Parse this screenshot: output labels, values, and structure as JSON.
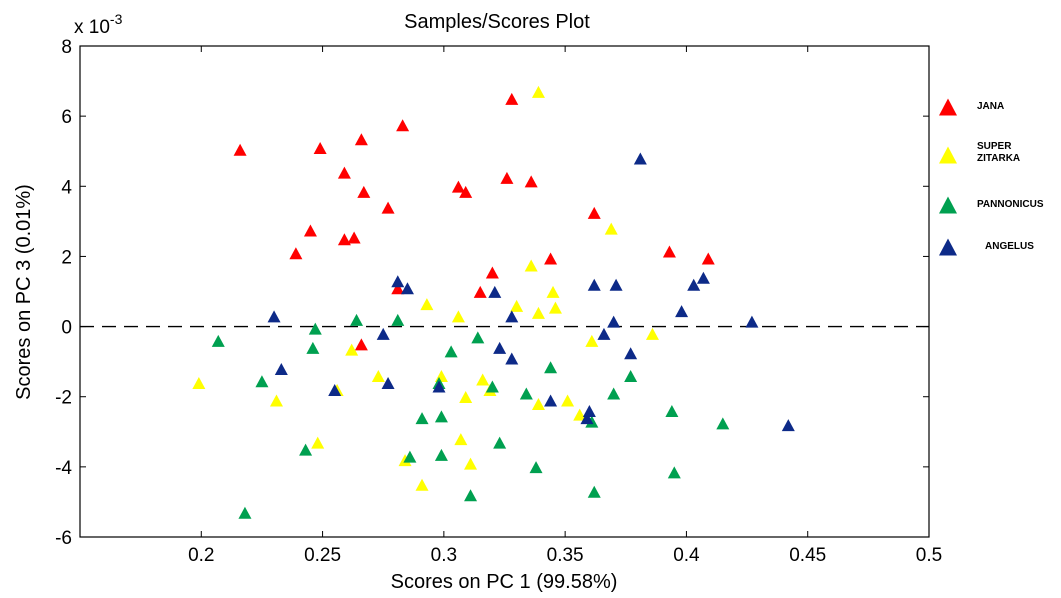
{
  "chart_data": {
    "type": "scatter",
    "title": "Samples/Scores Plot",
    "xlabel": "Scores on PC 1 (99.58%)",
    "ylabel": "Scores on PC 3 (0.01%)",
    "y_multiplier_label": "x 10",
    "y_multiplier_exponent": "-3",
    "xlim": [
      0.15,
      0.5
    ],
    "ylim": [
      -6,
      8
    ],
    "x_ticks": [
      0.2,
      0.25,
      0.3,
      0.35,
      0.4,
      0.45,
      0.5
    ],
    "x_tick_labels": [
      "0.2",
      "0.25",
      "0.3",
      "0.35",
      "0.4",
      "0.45",
      "0.5"
    ],
    "y_ticks": [
      -6,
      -4,
      -2,
      0,
      2,
      4,
      6,
      8
    ],
    "y_tick_labels": [
      "-6",
      "-4",
      "-2",
      "0",
      "2",
      "4",
      "6",
      "8"
    ],
    "zero_line": "dashed",
    "grid": false,
    "legend_position": "right",
    "marker": "triangle",
    "series": [
      {
        "name": "JANA",
        "color": "#ff0000",
        "points": [
          [
            0.216,
            5.0
          ],
          [
            0.249,
            5.05
          ],
          [
            0.259,
            4.35
          ],
          [
            0.266,
            5.3
          ],
          [
            0.267,
            3.8
          ],
          [
            0.277,
            3.35
          ],
          [
            0.283,
            5.7
          ],
          [
            0.245,
            2.7
          ],
          [
            0.259,
            2.45
          ],
          [
            0.263,
            2.5
          ],
          [
            0.239,
            2.05
          ],
          [
            0.266,
            -0.55
          ],
          [
            0.281,
            1.05
          ],
          [
            0.306,
            3.95
          ],
          [
            0.309,
            3.8
          ],
          [
            0.326,
            4.2
          ],
          [
            0.328,
            6.45
          ],
          [
            0.336,
            4.1
          ],
          [
            0.32,
            1.5
          ],
          [
            0.315,
            0.95
          ],
          [
            0.344,
            1.9
          ],
          [
            0.362,
            3.2
          ],
          [
            0.393,
            2.1
          ],
          [
            0.409,
            1.9
          ]
        ]
      },
      {
        "name": "SUPER ZITARKA",
        "color": "#ffff00",
        "points": [
          [
            0.339,
            6.65
          ],
          [
            0.369,
            2.75
          ],
          [
            0.336,
            1.7
          ],
          [
            0.33,
            0.55
          ],
          [
            0.339,
            0.35
          ],
          [
            0.345,
            0.95
          ],
          [
            0.346,
            0.5
          ],
          [
            0.293,
            0.6
          ],
          [
            0.306,
            0.25
          ],
          [
            0.386,
            -0.25
          ],
          [
            0.361,
            -0.45
          ],
          [
            0.262,
            -0.7
          ],
          [
            0.199,
            -1.65
          ],
          [
            0.231,
            -2.15
          ],
          [
            0.248,
            -3.35
          ],
          [
            0.256,
            -1.85
          ],
          [
            0.273,
            -1.45
          ],
          [
            0.299,
            -1.45
          ],
          [
            0.309,
            -2.05
          ],
          [
            0.316,
            -1.55
          ],
          [
            0.319,
            -1.85
          ],
          [
            0.339,
            -2.25
          ],
          [
            0.351,
            -2.15
          ],
          [
            0.356,
            -2.55
          ],
          [
            0.307,
            -3.25
          ],
          [
            0.311,
            -3.95
          ],
          [
            0.291,
            -4.55
          ],
          [
            0.284,
            -3.85
          ]
        ]
      },
      {
        "name": "PANNONICUS",
        "color": "#00a050",
        "points": [
          [
            0.207,
            -0.45
          ],
          [
            0.247,
            -0.1
          ],
          [
            0.264,
            0.15
          ],
          [
            0.281,
            0.15
          ],
          [
            0.246,
            -0.65
          ],
          [
            0.225,
            -1.6
          ],
          [
            0.243,
            -3.55
          ],
          [
            0.218,
            -5.35
          ],
          [
            0.298,
            -1.65
          ],
          [
            0.303,
            -0.75
          ],
          [
            0.314,
            -0.35
          ],
          [
            0.32,
            -1.75
          ],
          [
            0.334,
            -1.95
          ],
          [
            0.344,
            -1.2
          ],
          [
            0.291,
            -2.65
          ],
          [
            0.299,
            -2.6
          ],
          [
            0.286,
            -3.75
          ],
          [
            0.299,
            -3.7
          ],
          [
            0.311,
            -4.85
          ],
          [
            0.323,
            -3.35
          ],
          [
            0.338,
            -4.05
          ],
          [
            0.361,
            -2.75
          ],
          [
            0.37,
            -1.95
          ],
          [
            0.377,
            -1.45
          ],
          [
            0.362,
            -4.75
          ],
          [
            0.394,
            -2.45
          ],
          [
            0.395,
            -4.2
          ],
          [
            0.415,
            -2.8
          ]
        ]
      },
      {
        "name": "ANGELUS",
        "color": "#0d2a88",
        "points": [
          [
            0.381,
            4.75
          ],
          [
            0.281,
            1.25
          ],
          [
            0.285,
            1.05
          ],
          [
            0.321,
            0.95
          ],
          [
            0.362,
            1.15
          ],
          [
            0.371,
            1.15
          ],
          [
            0.403,
            1.15
          ],
          [
            0.407,
            1.35
          ],
          [
            0.398,
            0.4
          ],
          [
            0.328,
            0.25
          ],
          [
            0.23,
            0.25
          ],
          [
            0.275,
            -0.25
          ],
          [
            0.233,
            -1.25
          ],
          [
            0.255,
            -1.85
          ],
          [
            0.277,
            -1.65
          ],
          [
            0.298,
            -1.75
          ],
          [
            0.323,
            -0.65
          ],
          [
            0.328,
            -0.95
          ],
          [
            0.366,
            -0.25
          ],
          [
            0.37,
            0.1
          ],
          [
            0.377,
            -0.8
          ],
          [
            0.344,
            -2.15
          ],
          [
            0.36,
            -2.45
          ],
          [
            0.359,
            -2.65
          ],
          [
            0.427,
            0.1
          ],
          [
            0.442,
            -2.85
          ]
        ]
      }
    ]
  }
}
